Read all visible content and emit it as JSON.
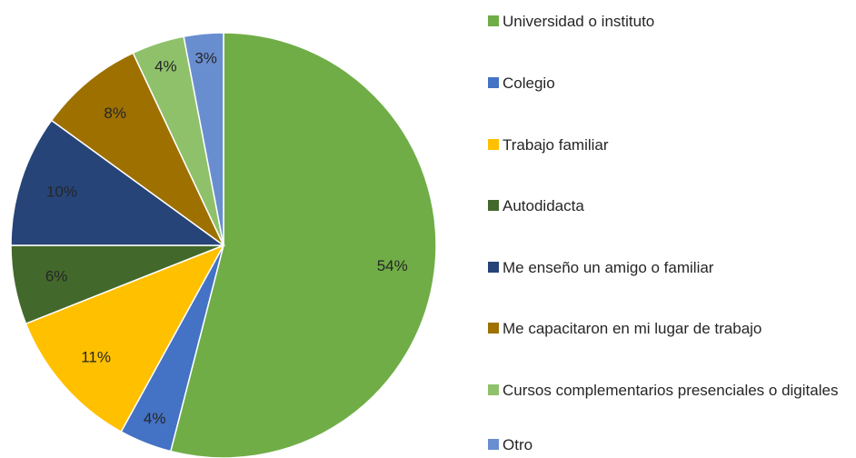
{
  "chart_data": {
    "type": "pie",
    "categories": [
      "Universidad o instituto",
      "Colegio",
      "Trabajo familiar",
      "Autodidacta",
      "Me enseño un amigo o familiar",
      "Me capacitaron en mi lugar de trabajo",
      "Cursos complementarios presenciales o digitales",
      "Otro"
    ],
    "values": [
      54,
      4,
      11,
      6,
      10,
      8,
      4,
      3
    ],
    "value_labels": [
      "54%",
      "4%",
      "11%",
      "6%",
      "10%",
      "8%",
      "4%",
      "3%"
    ],
    "colors": [
      "#70ad47",
      "#4472c4",
      "#ffc000",
      "#43682b",
      "#264478",
      "#9e7000",
      "#8fc16b",
      "#698ed0"
    ],
    "legend": "right"
  }
}
